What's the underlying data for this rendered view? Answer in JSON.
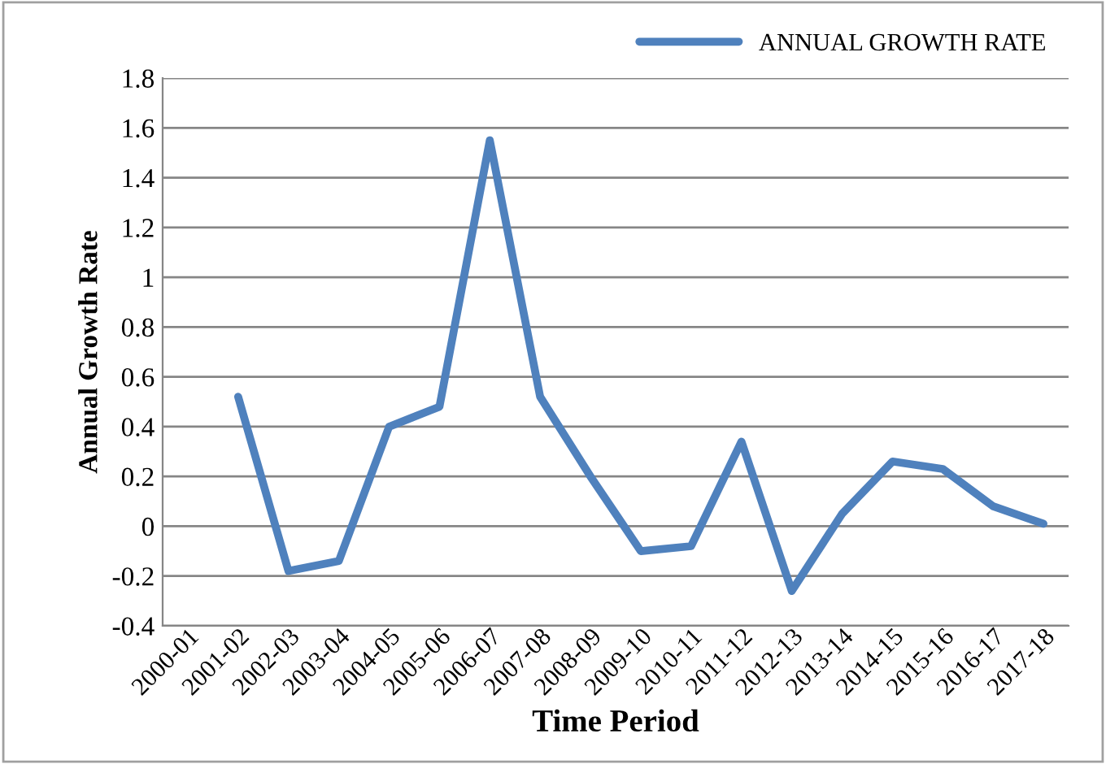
{
  "chart_data": {
    "type": "line",
    "xlabel": "Time Period",
    "ylabel": "Annual Growth Rate",
    "categories": [
      "2000-01",
      "2001-02",
      "2002-03",
      "2003-04",
      "2004-05",
      "2005-06",
      "2006-07",
      "2007-08",
      "2008-09",
      "2009-10",
      "2010-11",
      "2011-12",
      "2012-13",
      "2013-14",
      "2014-15",
      "2015-16",
      "2016-17",
      "2017-18"
    ],
    "series": [
      {
        "name": "ANNUAL GROWTH RATE",
        "color": "#4f81bd",
        "values": [
          null,
          0.52,
          -0.18,
          -0.14,
          0.4,
          0.48,
          1.55,
          0.52,
          0.2,
          -0.1,
          -0.08,
          0.34,
          -0.26,
          0.05,
          0.26,
          0.23,
          0.08,
          0.01
        ]
      }
    ],
    "ylim": [
      -0.4,
      1.8
    ],
    "yticks": [
      -0.4,
      -0.2,
      0,
      0.2,
      0.4,
      0.6,
      0.8,
      1,
      1.2,
      1.4,
      1.6,
      1.8
    ],
    "grid": "y",
    "legend": "top right",
    "marker": "none",
    "line_style": "solid"
  }
}
